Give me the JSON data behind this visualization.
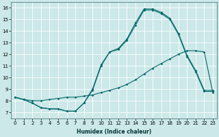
{
  "title": "",
  "xlabel": "Humidex (Indice chaleur)",
  "xlim": [
    -0.5,
    23.5
  ],
  "ylim": [
    6.5,
    16.5
  ],
  "yticks": [
    7,
    8,
    9,
    10,
    11,
    12,
    13,
    14,
    15,
    16
  ],
  "xticks": [
    0,
    1,
    2,
    3,
    4,
    5,
    6,
    7,
    8,
    9,
    10,
    11,
    12,
    13,
    14,
    15,
    16,
    17,
    18,
    19,
    20,
    21,
    22,
    23
  ],
  "bg_color": "#cce8e8",
  "grid_color": "#ffffff",
  "line_color": "#006868",
  "line1_y": [
    8.3,
    8.1,
    8.0,
    8.0,
    8.1,
    8.2,
    8.3,
    8.3,
    8.4,
    8.5,
    8.7,
    8.9,
    9.1,
    9.4,
    9.8,
    10.3,
    10.8,
    11.2,
    11.6,
    12.0,
    12.3,
    12.3,
    12.2,
    8.7
  ],
  "line2_y": [
    8.3,
    8.1,
    7.8,
    7.4,
    7.3,
    7.3,
    7.1,
    7.1,
    7.8,
    8.9,
    11.0,
    12.2,
    12.4,
    13.2,
    14.5,
    15.8,
    15.8,
    15.5,
    15.0,
    13.7,
    11.8,
    10.5,
    8.8,
    8.8
  ],
  "line3_y": [
    8.3,
    8.1,
    7.8,
    7.4,
    7.3,
    7.3,
    7.1,
    7.1,
    7.8,
    9.0,
    11.1,
    12.2,
    12.5,
    13.3,
    14.7,
    15.9,
    15.9,
    15.6,
    15.1,
    13.8,
    11.9,
    10.6,
    8.9,
    8.9
  ],
  "markersize": 1.8,
  "linewidth": 0.8,
  "tick_fontsize": 5,
  "xlabel_fontsize": 5.5
}
